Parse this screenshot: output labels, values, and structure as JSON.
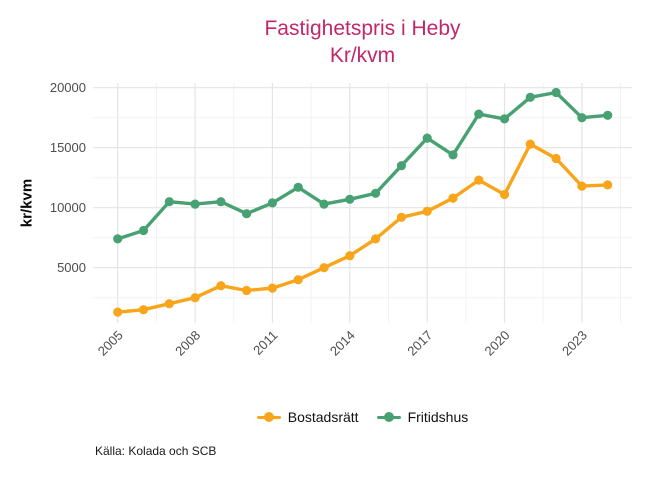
{
  "chart_data": {
    "type": "line",
    "title": "Fastighetspris i Heby",
    "subtitle": "Kr/kvm",
    "ylabel": "kr/kvm",
    "caption": "Källa: Kolada och SCB",
    "x": [
      2005,
      2006,
      2007,
      2008,
      2009,
      2010,
      2011,
      2012,
      2013,
      2014,
      2015,
      2016,
      2017,
      2018,
      2019,
      2020,
      2021,
      2022,
      2023,
      2024
    ],
    "x_tick_labels": [
      2005,
      2008,
      2011,
      2014,
      2017,
      2020,
      2023
    ],
    "y_tick_labels": [
      5000,
      10000,
      15000,
      20000
    ],
    "ylim": [
      400,
      20400
    ],
    "grid": true,
    "legend_position": "bottom",
    "series": [
      {
        "name": "Bostadsrätt",
        "color": "#F8A51B",
        "values": [
          1300,
          1500,
          2000,
          2500,
          3500,
          3100,
          3300,
          4000,
          5000,
          6000,
          7400,
          9200,
          9700,
          10800,
          12300,
          11100,
          15300,
          14100,
          11800,
          11900
        ]
      },
      {
        "name": "Fritidshus",
        "color": "#47A173",
        "values": [
          7400,
          8100,
          10500,
          10300,
          10500,
          9500,
          10400,
          11700,
          10300,
          10700,
          11200,
          13500,
          15800,
          14400,
          17800,
          17400,
          19200,
          19600,
          17500,
          17700
        ]
      }
    ]
  },
  "colors": {
    "title": "#C2276B",
    "axis_text": "#4D4D4D",
    "grid_major": "#E4E4E4",
    "grid_minor": "#F0F0F0"
  }
}
